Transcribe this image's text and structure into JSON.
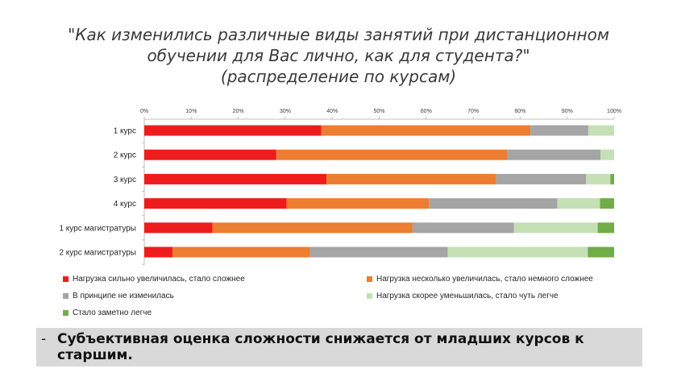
{
  "chart_data": {
    "type": "bar",
    "orientation": "horizontal",
    "stacked": "percent",
    "title_lines": [
      "\"Как изменились различные виды занятий при дистанционном",
      "обучении для Вас лично, как для студента?\"",
      "(распределение по курсам)"
    ],
    "categories": [
      "1 курс",
      "2 курс",
      "3 курс",
      "4 курс",
      "1 курс магистратуры",
      "2 курс магистратуры"
    ],
    "x_ticks": [
      "0%",
      "10%",
      "20%",
      "30%",
      "40%",
      "50%",
      "60%",
      "70%",
      "80%",
      "90%",
      "100%"
    ],
    "xlim": [
      0,
      100
    ],
    "series": [
      {
        "name": "Нагрузка сильно увеличилась, стало сложнее",
        "color": "#ee1c1c",
        "values": [
          37.7,
          28.1,
          38.8,
          30.3,
          14.5,
          6.0
        ]
      },
      {
        "name": "Нагрузка несколько увеличилась, стало немного сложнее",
        "color": "#ed7d31",
        "values": [
          44.5,
          49.2,
          36.1,
          30.3,
          42.6,
          29.3
        ]
      },
      {
        "name": "В принципе не изменилась",
        "color": "#a5a5a5",
        "values": [
          12.3,
          19.8,
          19.1,
          27.3,
          21.6,
          29.3
        ]
      },
      {
        "name": "Нагрузка скорее уменьшилась, стало чуть легче",
        "color": "#c5e0b4",
        "values": [
          5.5,
          2.9,
          5.2,
          9.1,
          17.8,
          29.8
        ]
      },
      {
        "name": "Стало заметно легче",
        "color": "#70ad47",
        "values": [
          0.0,
          0.0,
          0.8,
          3.0,
          3.5,
          5.6
        ]
      }
    ],
    "grid": false,
    "legend_position": "bottom"
  },
  "conclusion": {
    "dash": "-",
    "text": "Субъективная оценка сложности снижается от младших курсов к старшим."
  }
}
